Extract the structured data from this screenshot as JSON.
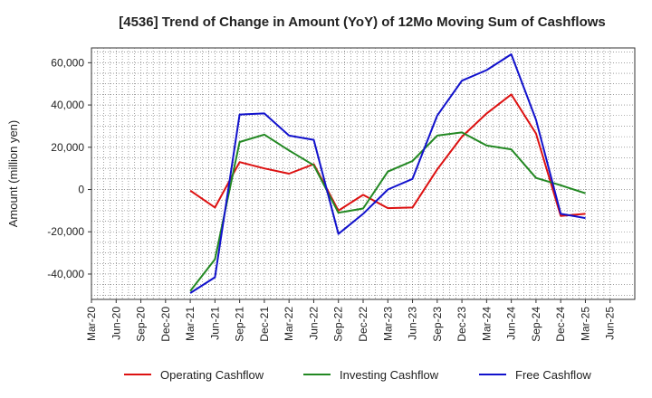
{
  "chart_data": {
    "type": "line",
    "title": "[4536]  Trend of Change in Amount (YoY) of 12Mo Moving Sum of Cashflows",
    "xlabel": "",
    "ylabel": "Amount (million yen)",
    "ylim": [
      -52000,
      67000
    ],
    "y_ticks": [
      -40000,
      -20000,
      0,
      20000,
      40000,
      60000
    ],
    "y_tick_labels": [
      "-40,000",
      "-20,000",
      "0",
      "20,000",
      "40,000",
      "60,000"
    ],
    "grid": true,
    "legend_position": "bottom",
    "categories": [
      "Mar-20",
      "Jun-20",
      "Sep-20",
      "Dec-20",
      "Mar-21",
      "Jun-21",
      "Sep-21",
      "Dec-21",
      "Mar-22",
      "Jun-22",
      "Sep-22",
      "Dec-22",
      "Mar-23",
      "Jun-23",
      "Sep-23",
      "Dec-23",
      "Mar-24",
      "Jun-24",
      "Sep-24",
      "Dec-24",
      "Mar-25",
      "Jun-25"
    ],
    "series": [
      {
        "name": "Operating Cashflow",
        "color": "#dd1111",
        "values": [
          null,
          null,
          null,
          null,
          -500,
          -8500,
          13000,
          10000,
          7500,
          12000,
          -10000,
          -2500,
          -8800,
          -8500,
          9500,
          25000,
          36000,
          45000,
          26500,
          -12500,
          -11500,
          null
        ]
      },
      {
        "name": "Investing Cashflow",
        "color": "#228822",
        "values": [
          null,
          null,
          null,
          null,
          -48000,
          -33000,
          22500,
          26000,
          18500,
          11500,
          -11000,
          -9000,
          8500,
          13500,
          25500,
          27000,
          20800,
          19000,
          5500,
          2000,
          -1800,
          null
        ]
      },
      {
        "name": "Free Cashflow",
        "color": "#1111cc",
        "values": [
          null,
          null,
          null,
          null,
          -49000,
          -41500,
          35500,
          36000,
          25500,
          23500,
          -21000,
          -11500,
          0,
          5000,
          35000,
          51500,
          56500,
          64000,
          33000,
          -11500,
          -13500,
          null
        ]
      }
    ]
  }
}
